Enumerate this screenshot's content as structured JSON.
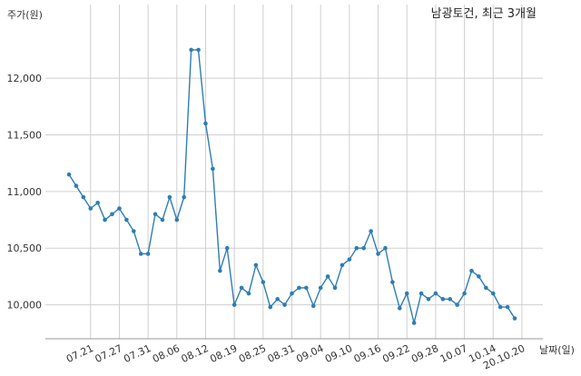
{
  "chart_data": {
    "type": "line",
    "title": "남광토건, 최근 3개월",
    "xlabel": "날짜(일)",
    "ylabel": "주가(원)",
    "ylim": [
      9700,
      12650
    ],
    "grid": true,
    "y_ticks": [
      10000,
      10500,
      11000,
      11500,
      12000
    ],
    "y_tick_labels": [
      "10,000",
      "10,500",
      "11,000",
      "11,500",
      "12,000"
    ],
    "x_tick_labels": [
      "07.21",
      "07.27",
      "07.31",
      "08.06",
      "08.12",
      "08.19",
      "08.25",
      "08.31",
      "09.04",
      "09.10",
      "09.16",
      "09.22",
      "09.28",
      "10.07",
      "10.14",
      "20.10.20"
    ],
    "x_tick_index": [
      3,
      7,
      11,
      15,
      19,
      23,
      27,
      31,
      35,
      39,
      43,
      47,
      51,
      55,
      59,
      63
    ],
    "series": [
      {
        "color": "#2e7db3",
        "values": [
          11150,
          11050,
          10950,
          10850,
          10900,
          10750,
          10800,
          10850,
          10750,
          10650,
          10450,
          10450,
          10800,
          10750,
          10950,
          10750,
          10950,
          12250,
          12250,
          11600,
          11200,
          10300,
          10500,
          10000,
          10150,
          10100,
          10350,
          10200,
          9980,
          10050,
          10000,
          10100,
          10150,
          10150,
          9990,
          10150,
          10250,
          10150,
          10350,
          10400,
          10500,
          10500,
          10650,
          10450,
          10500,
          10200,
          9970,
          10100,
          9840,
          10100,
          10050,
          10100,
          10050,
          10050,
          10000,
          10100,
          10300,
          10250,
          10150,
          10100,
          9980,
          9980,
          9880
        ]
      }
    ]
  }
}
